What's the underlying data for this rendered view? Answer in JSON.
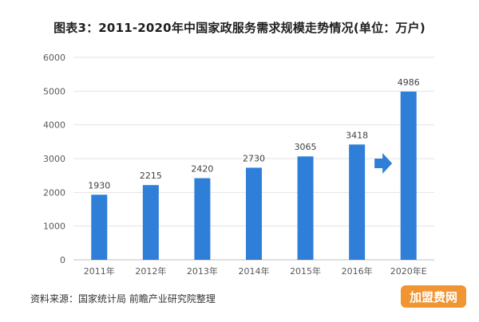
{
  "chart_data": {
    "type": "bar",
    "title": "图表3：2011-2020年中国家政服务需求规模走势情况(单位：万户)",
    "categories": [
      "2011年",
      "2012年",
      "2013年",
      "2014年",
      "2015年",
      "2016年",
      "2020年E"
    ],
    "values": [
      1930,
      2215,
      2420,
      2730,
      3065,
      3418,
      4986
    ],
    "ylim": [
      0,
      6000
    ],
    "yticks": [
      0,
      1000,
      2000,
      3000,
      4000,
      5000,
      6000
    ],
    "grid": true,
    "bar_color": "#2f7ed8",
    "arrow_color": "#2f7ed8"
  },
  "source": "资料来源：国家统计局 前瞻产业研究院整理",
  "logo_text": "加盟费网"
}
